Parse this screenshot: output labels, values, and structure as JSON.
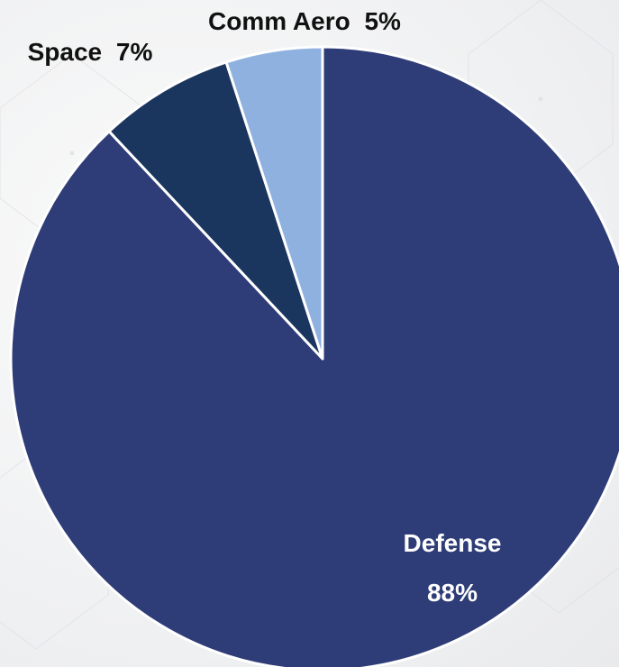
{
  "chart_data": {
    "type": "pie",
    "slices": [
      {
        "category": "Defense",
        "percent_label": "88%",
        "value": 88,
        "color": "#2e3d77"
      },
      {
        "category": "Space",
        "percent_label": "7%",
        "value": 7,
        "color": "#1a355e"
      },
      {
        "category": "Comm Aero",
        "percent_label": "5%",
        "value": 5,
        "color": "#8fb1e0"
      }
    ],
    "label_colors": {
      "inside": "#ffffff",
      "outside": "#111111"
    },
    "slice_border_color": "#ffffff"
  }
}
